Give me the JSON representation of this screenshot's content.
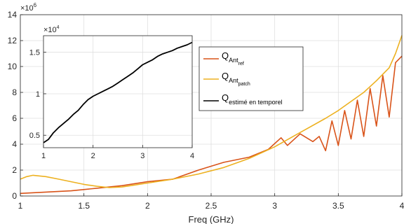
{
  "chart_data": [
    {
      "type": "line",
      "xlabel": "Freq (GHz)",
      "ylabel": "",
      "y_multiplier": "×10^6",
      "xlim": [
        1,
        4
      ],
      "ylim": [
        0,
        14
      ],
      "xticks": [
        "1",
        "1.5",
        "2",
        "2.5",
        "3",
        "3.5",
        "4"
      ],
      "yticks": [
        "0",
        "2",
        "4",
        "6",
        "8",
        "10",
        "12",
        "14"
      ],
      "grid": true,
      "legend_position": "upper-right",
      "series": [
        {
          "name": "Q Ant ref",
          "label_main": "Q",
          "label_sub": "Ant",
          "label_subsub": "ref",
          "color": "#D95319",
          "x": [
            1.0,
            1.2,
            1.4,
            1.6,
            1.8,
            2.0,
            2.2,
            2.4,
            2.6,
            2.8,
            2.95,
            3.05,
            3.1,
            3.2,
            3.3,
            3.35,
            3.4,
            3.45,
            3.5,
            3.55,
            3.6,
            3.65,
            3.7,
            3.75,
            3.8,
            3.85,
            3.9,
            3.95,
            4.0
          ],
          "y": [
            0.2,
            0.3,
            0.4,
            0.6,
            0.8,
            1.1,
            1.3,
            2.0,
            2.6,
            3.0,
            3.6,
            4.5,
            3.9,
            4.8,
            4.2,
            4.6,
            3.5,
            5.8,
            3.9,
            6.6,
            4.4,
            7.4,
            4.6,
            8.3,
            5.4,
            9.3,
            6.1,
            10.3,
            10.8
          ]
        },
        {
          "name": "Q Ant patch",
          "label_main": "Q",
          "label_sub": "Ant",
          "label_subsub": "patch",
          "color": "#EDB120",
          "x": [
            1.0,
            1.05,
            1.1,
            1.2,
            1.3,
            1.4,
            1.5,
            1.6,
            1.7,
            1.8,
            1.9,
            2.0,
            2.2,
            2.4,
            2.6,
            2.8,
            3.0,
            3.2,
            3.4,
            3.5,
            3.6,
            3.7,
            3.8,
            3.9,
            3.95,
            4.0
          ],
          "y": [
            1.3,
            1.5,
            1.6,
            1.5,
            1.3,
            1.1,
            0.9,
            0.75,
            0.65,
            0.7,
            0.85,
            1.0,
            1.3,
            1.7,
            2.2,
            2.9,
            3.8,
            4.9,
            6.0,
            6.6,
            7.3,
            8.0,
            8.9,
            9.9,
            11.0,
            12.4
          ]
        }
      ]
    },
    {
      "type": "line",
      "xlabel": "",
      "ylabel": "",
      "y_multiplier": "×10^4",
      "xlim": [
        1,
        4
      ],
      "ylim": [
        0.35,
        1.7
      ],
      "xticks": [
        "1",
        "2",
        "3",
        "4"
      ],
      "yticks": [
        "0.5",
        "1",
        "1.5"
      ],
      "grid": true,
      "series": [
        {
          "name": "Q estimé en temporel",
          "label_main": "Q",
          "label_sub": "estimé en temporel",
          "color": "#000000",
          "x": [
            1.0,
            1.1,
            1.2,
            1.3,
            1.4,
            1.5,
            1.6,
            1.7,
            1.8,
            1.9,
            2.0,
            2.1,
            2.2,
            2.3,
            2.4,
            2.5,
            2.6,
            2.7,
            2.8,
            2.9,
            3.0,
            3.1,
            3.2,
            3.3,
            3.4,
            3.5,
            3.6,
            3.7,
            3.8,
            3.9,
            4.0
          ],
          "y": [
            0.41,
            0.45,
            0.53,
            0.59,
            0.64,
            0.69,
            0.75,
            0.8,
            0.87,
            0.93,
            0.97,
            1.0,
            1.03,
            1.06,
            1.09,
            1.13,
            1.17,
            1.21,
            1.25,
            1.3,
            1.35,
            1.38,
            1.41,
            1.45,
            1.48,
            1.5,
            1.52,
            1.55,
            1.57,
            1.59,
            1.62
          ]
        }
      ]
    }
  ]
}
